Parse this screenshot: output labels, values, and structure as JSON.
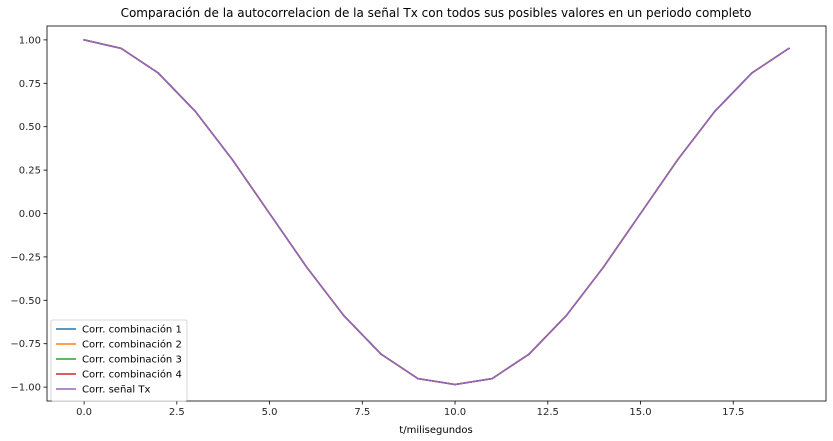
{
  "chart_data": {
    "type": "line",
    "title": "Comparación de la autocorrelacion de la señal Tx con todos sus posibles valores en un periodo completo",
    "xlabel": "t/milisegundos",
    "ylabel": "",
    "xlim": [
      -1.0,
      20.0
    ],
    "ylim": [
      -1.08,
      1.08
    ],
    "xticks": [
      0.0,
      2.5,
      5.0,
      7.5,
      10.0,
      12.5,
      15.0,
      17.5
    ],
    "xtick_labels": [
      "0.0",
      "2.5",
      "5.0",
      "7.5",
      "10.0",
      "12.5",
      "15.0",
      "17.5"
    ],
    "yticks": [
      1.0,
      0.75,
      0.5,
      0.25,
      0.0,
      -0.25,
      -0.5,
      -0.75,
      -1.0
    ],
    "ytick_labels": [
      "1.00",
      "0.75",
      "0.50",
      "0.25",
      "0.00",
      "−0.25",
      "−0.50",
      "−0.75",
      "−1.00"
    ],
    "grid": false,
    "legend_position": "lower-left",
    "x": [
      0,
      1,
      2,
      3,
      4,
      5,
      6,
      7,
      8,
      9,
      10,
      11,
      12,
      13,
      14,
      15,
      16,
      17,
      18,
      19
    ],
    "series": [
      {
        "name": "Corr. combinación 1",
        "color": "#1f77b4",
        "values": [
          1.0,
          0.951,
          0.809,
          0.588,
          0.309,
          0.0,
          -0.309,
          -0.588,
          -0.809,
          -0.951,
          -0.985,
          -0.951,
          -0.809,
          -0.588,
          -0.309,
          0.0,
          0.309,
          0.588,
          0.809,
          0.951
        ]
      },
      {
        "name": "Corr. combinación 2",
        "color": "#ff7f0e",
        "values": [
          1.0,
          0.951,
          0.809,
          0.588,
          0.309,
          0.0,
          -0.309,
          -0.588,
          -0.809,
          -0.951,
          -0.985,
          -0.951,
          -0.809,
          -0.588,
          -0.309,
          0.0,
          0.309,
          0.588,
          0.809,
          0.951
        ]
      },
      {
        "name": "Corr. combinación 3",
        "color": "#2ca02c",
        "values": [
          1.0,
          0.951,
          0.809,
          0.588,
          0.309,
          0.0,
          -0.309,
          -0.588,
          -0.809,
          -0.951,
          -0.985,
          -0.951,
          -0.809,
          -0.588,
          -0.309,
          0.0,
          0.309,
          0.588,
          0.809,
          0.951
        ]
      },
      {
        "name": "Corr. combinación 4",
        "color": "#d62728",
        "values": [
          1.0,
          0.951,
          0.809,
          0.588,
          0.309,
          0.0,
          -0.309,
          -0.588,
          -0.809,
          -0.951,
          -0.985,
          -0.951,
          -0.809,
          -0.588,
          -0.309,
          0.0,
          0.309,
          0.588,
          0.809,
          0.951
        ]
      },
      {
        "name": "Corr. señal Tx",
        "color": "#9467bd",
        "values": [
          1.0,
          0.951,
          0.809,
          0.588,
          0.309,
          0.0,
          -0.309,
          -0.588,
          -0.809,
          -0.951,
          -0.985,
          -0.951,
          -0.809,
          -0.588,
          -0.309,
          0.0,
          0.309,
          0.588,
          0.809,
          0.951
        ]
      }
    ]
  }
}
